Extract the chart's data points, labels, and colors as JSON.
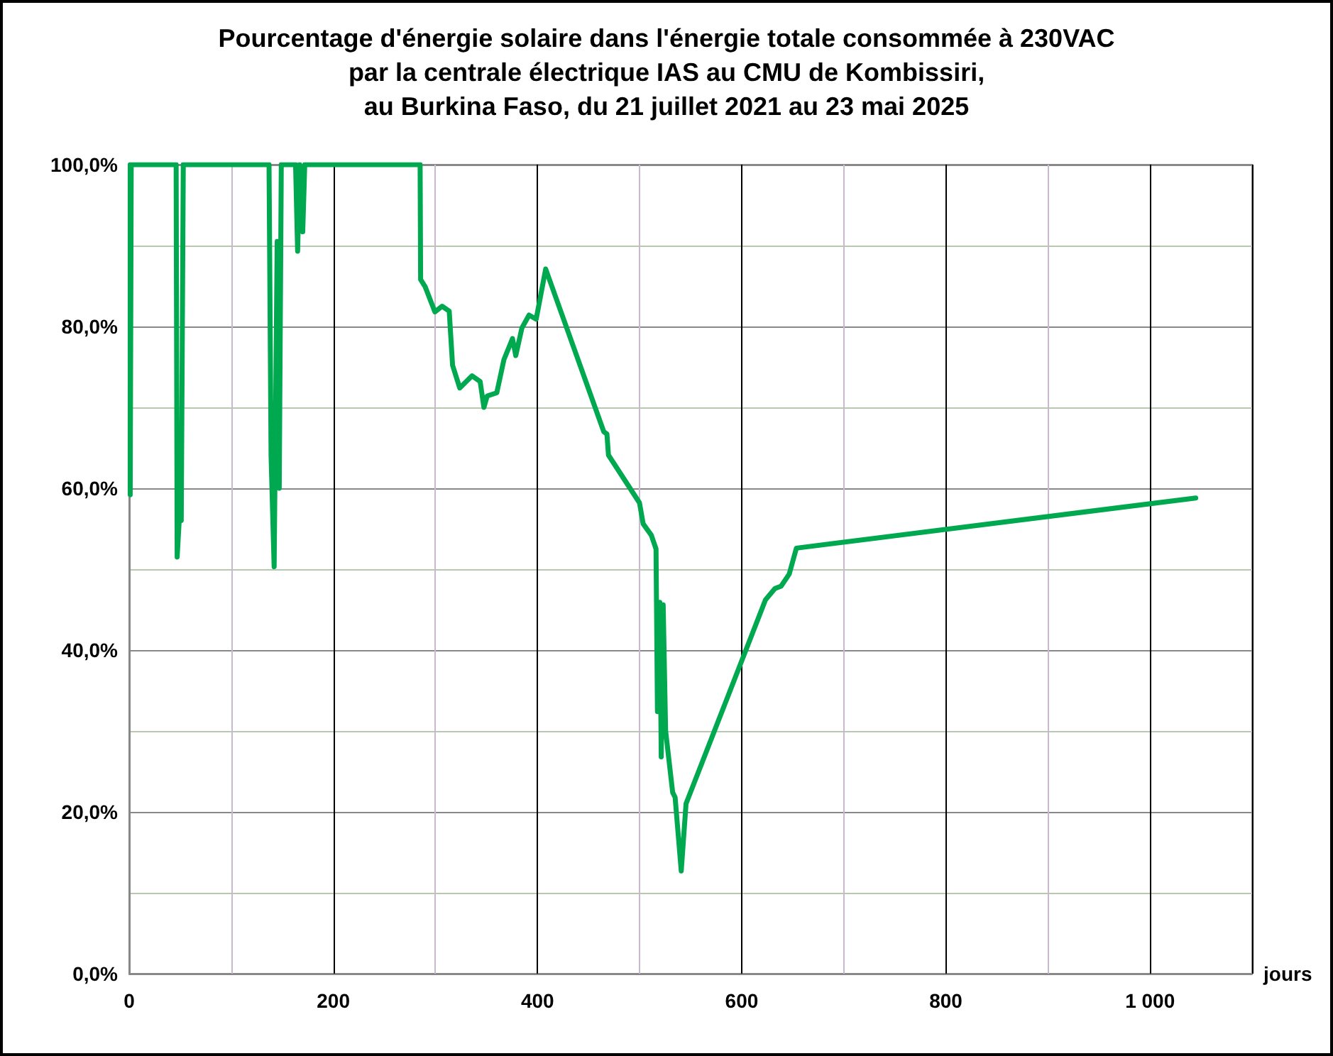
{
  "chart_data": {
    "type": "line",
    "title": "Pourcentage d'énergie solaire dans l'énergie totale consommée à 230VAC\npar la centrale électrique IAS au CMU de Kombissiri,\nau Burkina Faso, du 21 juillet 2021 au 23 mai 2025",
    "xlabel": "jours",
    "xlim": [
      0,
      1100
    ],
    "ylim": [
      0,
      100
    ],
    "xticks": [
      0,
      200,
      400,
      600,
      800,
      {
        "value": 1000,
        "label": "1 000"
      }
    ],
    "yticks": [
      {
        "value": 0,
        "label": "0,0%"
      },
      {
        "value": 20,
        "label": "20,0%"
      },
      {
        "value": 40,
        "label": "40,0%"
      },
      {
        "value": 60,
        "label": "60,0%"
      },
      {
        "value": 80,
        "label": "80,0%"
      },
      {
        "value": 100,
        "label": "100,0%"
      }
    ],
    "grid": true,
    "marker": "none",
    "line_style": "solid",
    "series": [
      {
        "color": "#00a84f",
        "x": [
          1,
          1,
          2,
          46,
          47,
          49,
          51,
          53,
          55,
          55,
          137,
          139,
          142,
          145,
          147,
          149,
          151,
          163,
          165,
          167,
          170,
          172,
          285,
          285.5,
          290,
          299.5,
          306.5,
          313.5,
          316.8,
          323.8,
          335.9,
          343.8,
          347.5,
          350.7,
          360.1,
          367.1,
          375.5,
          378.7,
          384.7,
          391.7,
          398.7,
          408,
          464.9,
          468,
          469.5,
          499.9,
          503.5,
          511.5,
          516.1,
          517.5,
          519.8,
          521.2,
          523.1,
          525.5,
          532.4,
          534.8,
          540.8,
          545.5,
          623.3,
          632.6,
          638.6,
          646.6,
          653.6,
          1044.8
        ],
        "values": [
          100,
          59.2,
          100,
          100,
          51.5,
          56,
          56,
          100,
          100,
          100,
          100,
          64,
          50.3,
          90.5,
          60,
          100,
          100,
          100,
          89.3,
          100,
          91.7,
          100,
          100,
          85.8,
          84.9,
          81.8,
          82.5,
          81.9,
          75.2,
          72.4,
          73.9,
          73.2,
          70,
          71.4,
          71.8,
          75.9,
          78.5,
          76.4,
          79.8,
          81.4,
          80.9,
          87.1,
          67,
          66.7,
          64.1,
          58.2,
          55.6,
          54.2,
          52.5,
          32.4,
          45.9,
          26.8,
          45.6,
          30,
          22.4,
          21.8,
          12.7,
          21,
          46.2,
          47.6,
          47.9,
          49.4,
          52.6,
          58.8
        ]
      }
    ]
  }
}
